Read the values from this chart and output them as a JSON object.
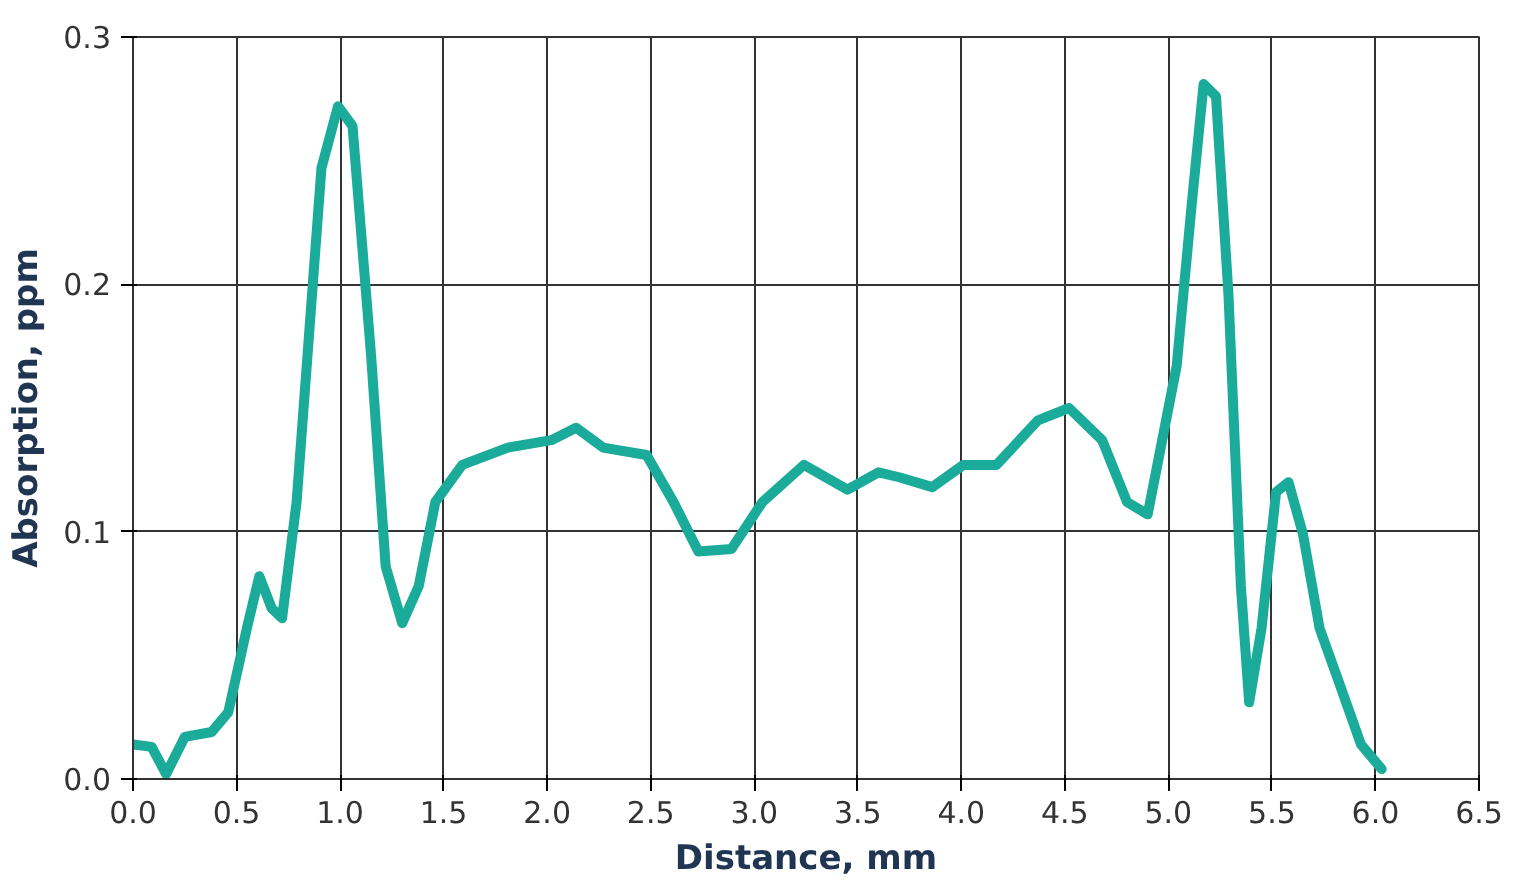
{
  "chart_data": {
    "type": "line",
    "xlabel": "Distance, mm",
    "ylabel": "Absorption, ppm",
    "xlim": [
      0,
      6.5
    ],
    "ylim": [
      0,
      0.3
    ],
    "xticks": [
      {
        "value": 0,
        "label": "0.0"
      },
      {
        "value": 0.5,
        "label": "0.5"
      },
      {
        "value": 1,
        "label": "1.0"
      },
      {
        "value": 1.5,
        "label": "1.5"
      },
      {
        "value": 2,
        "label": "2.0"
      },
      {
        "value": 2.5,
        "label": "2.5"
      },
      {
        "value": 3,
        "label": "3.0"
      },
      {
        "value": 3.5,
        "label": "3.5"
      },
      {
        "value": 4,
        "label": "4.0"
      },
      {
        "value": 4.5,
        "label": "4.5"
      },
      {
        "value": 5,
        "label": "5.0"
      },
      {
        "value": 5.5,
        "label": "5.5"
      },
      {
        "value": 6,
        "label": "6.0"
      },
      {
        "value": 6.5,
        "label": "6.5"
      }
    ],
    "yticks": [
      {
        "value": 0,
        "label": "0.0"
      },
      {
        "value": 0.1,
        "label": "0.1"
      },
      {
        "value": 0.2,
        "label": "0.2"
      },
      {
        "value": 0.3,
        "label": "0.3"
      }
    ],
    "grid": true,
    "marker": "none",
    "line_style": "solid",
    "series": [
      {
        "color": "#1aab9b",
        "x": [
          0,
          0.09,
          0.16,
          0.25,
          0.38,
          0.46,
          0.55,
          0.61,
          0.67,
          0.72,
          0.79,
          0.91,
          0.99,
          1.06,
          1.15,
          1.22,
          1.3,
          1.38,
          1.46,
          1.59,
          1.81,
          2.02,
          2.14,
          2.27,
          2.48,
          2.61,
          2.73,
          2.89,
          3.04,
          3.24,
          3.45,
          3.6,
          3.7,
          3.86,
          4.01,
          4.17,
          4.37,
          4.52,
          4.68,
          4.8,
          4.9,
          5.04,
          5.11,
          5.17,
          5.23,
          5.29,
          5.35,
          5.39,
          5.45,
          5.52,
          5.58,
          5.65,
          5.73,
          5.82,
          5.93,
          6.03
        ],
        "values": [
          0.014,
          0.013,
          0.002,
          0.017,
          0.019,
          0.027,
          0.061,
          0.082,
          0.069,
          0.065,
          0.112,
          0.247,
          0.272,
          0.264,
          0.171,
          0.086,
          0.063,
          0.078,
          0.112,
          0.127,
          0.134,
          0.137,
          0.142,
          0.134,
          0.131,
          0.112,
          0.092,
          0.093,
          0.112,
          0.127,
          0.117,
          0.124,
          0.122,
          0.118,
          0.127,
          0.127,
          0.145,
          0.15,
          0.137,
          0.112,
          0.107,
          0.167,
          0.23,
          0.281,
          0.276,
          0.196,
          0.078,
          0.031,
          0.061,
          0.116,
          0.12,
          0.099,
          0.061,
          0.04,
          0.014,
          0.004
        ]
      }
    ]
  }
}
